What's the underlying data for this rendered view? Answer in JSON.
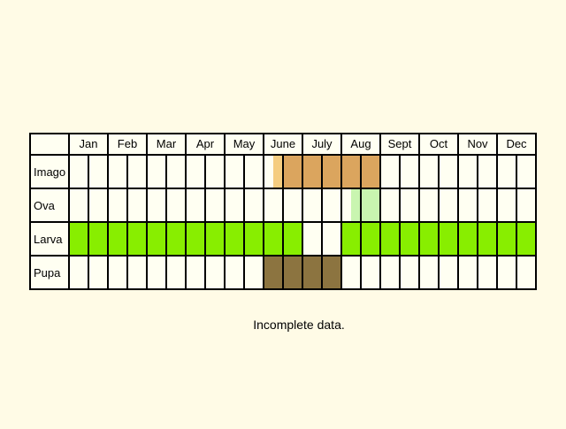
{
  "chart_data": {
    "type": "table",
    "title": "",
    "columns": [
      "Jan",
      "Feb",
      "Mar",
      "Apr",
      "May",
      "June",
      "July",
      "Aug",
      "Sept",
      "Oct",
      "Nov",
      "Dec"
    ],
    "slots_per_month": 2,
    "rows": [
      {
        "label": "Imago",
        "periods": [
          {
            "start": 10.5,
            "end": 11,
            "color": "#f5cd80"
          },
          {
            "start": 11,
            "end": 16,
            "color": "#dba55e"
          }
        ]
      },
      {
        "label": "Ova",
        "periods": [
          {
            "start": 14.5,
            "end": 16,
            "color": "#c9f5b0"
          }
        ]
      },
      {
        "label": "Larva",
        "periods": [
          {
            "start": 0,
            "end": 12,
            "color": "#88ee00"
          },
          {
            "start": 14,
            "end": 24,
            "color": "#88ee00"
          }
        ]
      },
      {
        "label": "Pupa",
        "periods": [
          {
            "start": 10,
            "end": 14,
            "color": "#8c7440"
          }
        ]
      }
    ]
  },
  "note": "Incomplete data.",
  "colors": {
    "background": "#fffbe6",
    "grid": "#000000"
  }
}
